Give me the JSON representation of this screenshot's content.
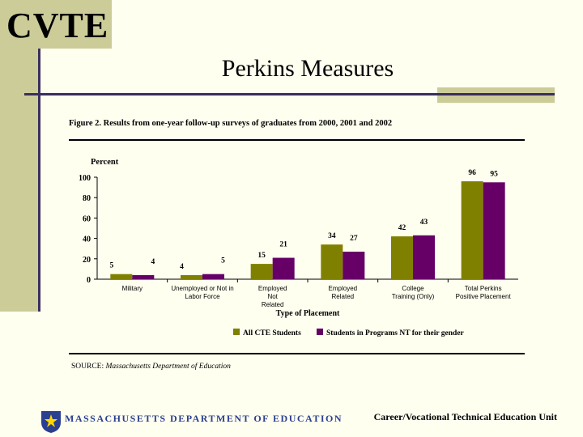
{
  "header": {
    "logo_text": "CVTE",
    "title": "Perkins Measures"
  },
  "chart_data": {
    "type": "bar",
    "title": "Figure 2. Results from one-year follow-up surveys of graduates from 2000, 2001 and 2002",
    "ylabel": "Percent",
    "xlabel": "Type of Placement",
    "ylim": [
      0,
      100
    ],
    "yticks": [
      0,
      20,
      40,
      60,
      80,
      100
    ],
    "categories": [
      [
        "Military"
      ],
      [
        "Unemployed or Not in",
        "Labor Force"
      ],
      [
        "Employed",
        "Not",
        "Related"
      ],
      [
        "Employed",
        "Related"
      ],
      [
        "College",
        "Training (Only)"
      ],
      [
        "Total Perkins",
        "Positive Placement"
      ]
    ],
    "series": [
      {
        "name": "All CTE Students",
        "color": "#808000",
        "values": [
          5,
          4,
          15,
          34,
          42,
          96
        ]
      },
      {
        "name": "Students in Programs NT for their gender",
        "color": "#660066",
        "values": [
          4,
          5,
          21,
          27,
          43,
          95
        ]
      }
    ],
    "legend_position": "bottom",
    "grid": false,
    "source_label": "SOURCE:",
    "source_text": "Massachusetts Department of Education"
  },
  "footer": {
    "department": "MASSACHUSETTS DEPARTMENT OF EDUCATION",
    "unit": "Career/Vocational Technical Education Unit",
    "seal_icon": "state-seal-icon"
  }
}
